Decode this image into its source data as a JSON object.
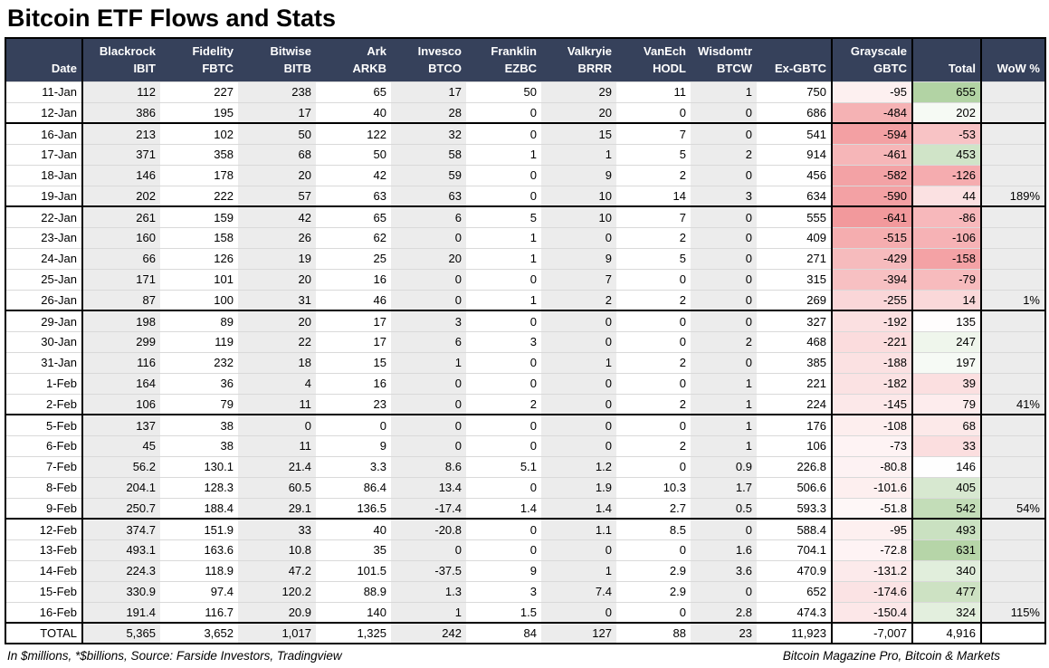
{
  "title": "Bitcoin ETF Flows and Stats",
  "footer": {
    "left": "In $millions, *$billions, Source: Farside Investors, Tradingview",
    "right": "Bitcoin Magazine Pro, Bitcoin & Markets"
  },
  "colors": {
    "header_bg": "#36415B",
    "column_stripe": "#ECECEC",
    "gbtc_red_max": "#F2999C",
    "total_green_max": "#B2D3A4",
    "total_red_max": "#F4A2A5"
  },
  "table": {
    "columns": [
      {
        "line1": "",
        "line2": "Date"
      },
      {
        "line1": "Blackrock",
        "line2": "IBIT"
      },
      {
        "line1": "Fidelity",
        "line2": "FBTC"
      },
      {
        "line1": "Bitwise",
        "line2": "BITB"
      },
      {
        "line1": "Ark",
        "line2": "ARKB"
      },
      {
        "line1": "Invesco",
        "line2": "BTCO"
      },
      {
        "line1": "Franklin",
        "line2": "EZBC"
      },
      {
        "line1": "Valkryie",
        "line2": "BRRR"
      },
      {
        "line1": "VanEch",
        "line2": "HODL"
      },
      {
        "line1": "Wisdomtr",
        "line2": "BTCW"
      },
      {
        "line1": "",
        "line2": "Ex-GBTC"
      },
      {
        "line1": "Grayscale",
        "line2": "GBTC"
      },
      {
        "line1": "",
        "line2": "Total"
      },
      {
        "line1": "",
        "line2": "WoW %"
      }
    ],
    "rows": [
      {
        "date": "11-Jan",
        "week_start": false,
        "values": [
          "112",
          "227",
          "238",
          "65",
          "17",
          "50",
          "29",
          "11",
          "1",
          "750",
          "-95",
          "655"
        ],
        "wow": ""
      },
      {
        "date": "12-Jan",
        "week_start": false,
        "values": [
          "386",
          "195",
          "17",
          "40",
          "28",
          "0",
          "20",
          "0",
          "0",
          "686",
          "-484",
          "202"
        ],
        "wow": ""
      },
      {
        "date": "16-Jan",
        "week_start": true,
        "values": [
          "213",
          "102",
          "50",
          "122",
          "32",
          "0",
          "15",
          "7",
          "0",
          "541",
          "-594",
          "-53"
        ],
        "wow": ""
      },
      {
        "date": "17-Jan",
        "week_start": false,
        "values": [
          "371",
          "358",
          "68",
          "50",
          "58",
          "1",
          "1",
          "5",
          "2",
          "914",
          "-461",
          "453"
        ],
        "wow": ""
      },
      {
        "date": "18-Jan",
        "week_start": false,
        "values": [
          "146",
          "178",
          "20",
          "42",
          "59",
          "0",
          "9",
          "2",
          "0",
          "456",
          "-582",
          "-126"
        ],
        "wow": ""
      },
      {
        "date": "19-Jan",
        "week_start": false,
        "values": [
          "202",
          "222",
          "57",
          "63",
          "63",
          "0",
          "10",
          "14",
          "3",
          "634",
          "-590",
          "44"
        ],
        "wow": "189%"
      },
      {
        "date": "22-Jan",
        "week_start": true,
        "values": [
          "261",
          "159",
          "42",
          "65",
          "6",
          "5",
          "10",
          "7",
          "0",
          "555",
          "-641",
          "-86"
        ],
        "wow": ""
      },
      {
        "date": "23-Jan",
        "week_start": false,
        "values": [
          "160",
          "158",
          "26",
          "62",
          "0",
          "1",
          "0",
          "2",
          "0",
          "409",
          "-515",
          "-106"
        ],
        "wow": ""
      },
      {
        "date": "24-Jan",
        "week_start": false,
        "values": [
          "66",
          "126",
          "19",
          "25",
          "20",
          "1",
          "9",
          "5",
          "0",
          "271",
          "-429",
          "-158"
        ],
        "wow": ""
      },
      {
        "date": "25-Jan",
        "week_start": false,
        "values": [
          "171",
          "101",
          "20",
          "16",
          "0",
          "0",
          "7",
          "0",
          "0",
          "315",
          "-394",
          "-79"
        ],
        "wow": ""
      },
      {
        "date": "26-Jan",
        "week_start": false,
        "values": [
          "87",
          "100",
          "31",
          "46",
          "0",
          "1",
          "2",
          "2",
          "0",
          "269",
          "-255",
          "14"
        ],
        "wow": "1%"
      },
      {
        "date": "29-Jan",
        "week_start": true,
        "values": [
          "198",
          "89",
          "20",
          "17",
          "3",
          "0",
          "0",
          "0",
          "0",
          "327",
          "-192",
          "135"
        ],
        "wow": ""
      },
      {
        "date": "30-Jan",
        "week_start": false,
        "values": [
          "299",
          "119",
          "22",
          "17",
          "6",
          "3",
          "0",
          "0",
          "2",
          "468",
          "-221",
          "247"
        ],
        "wow": ""
      },
      {
        "date": "31-Jan",
        "week_start": false,
        "values": [
          "116",
          "232",
          "18",
          "15",
          "1",
          "0",
          "1",
          "2",
          "0",
          "385",
          "-188",
          "197"
        ],
        "wow": ""
      },
      {
        "date": "1-Feb",
        "week_start": false,
        "values": [
          "164",
          "36",
          "4",
          "16",
          "0",
          "0",
          "0",
          "0",
          "1",
          "221",
          "-182",
          "39"
        ],
        "wow": ""
      },
      {
        "date": "2-Feb",
        "week_start": false,
        "values": [
          "106",
          "79",
          "11",
          "23",
          "0",
          "2",
          "0",
          "2",
          "1",
          "224",
          "-145",
          "79"
        ],
        "wow": "41%"
      },
      {
        "date": "5-Feb",
        "week_start": true,
        "values": [
          "137",
          "38",
          "0",
          "0",
          "0",
          "0",
          "0",
          "0",
          "1",
          "176",
          "-108",
          "68"
        ],
        "wow": ""
      },
      {
        "date": "6-Feb",
        "week_start": false,
        "values": [
          "45",
          "38",
          "11",
          "9",
          "0",
          "0",
          "0",
          "2",
          "1",
          "106",
          "-73",
          "33"
        ],
        "wow": ""
      },
      {
        "date": "7-Feb",
        "week_start": false,
        "values": [
          "56.2",
          "130.1",
          "21.4",
          "3.3",
          "8.6",
          "5.1",
          "1.2",
          "0",
          "0.9",
          "226.8",
          "-80.8",
          "146"
        ],
        "wow": ""
      },
      {
        "date": "8-Feb",
        "week_start": false,
        "values": [
          "204.1",
          "128.3",
          "60.5",
          "86.4",
          "13.4",
          "0",
          "1.9",
          "10.3",
          "1.7",
          "506.6",
          "-101.6",
          "405"
        ],
        "wow": ""
      },
      {
        "date": "9-Feb",
        "week_start": false,
        "values": [
          "250.7",
          "188.4",
          "29.1",
          "136.5",
          "-17.4",
          "1.4",
          "1.4",
          "2.7",
          "0.5",
          "593.3",
          "-51.8",
          "542"
        ],
        "wow": "54%"
      },
      {
        "date": "12-Feb",
        "week_start": true,
        "values": [
          "374.7",
          "151.9",
          "33",
          "40",
          "-20.8",
          "0",
          "1.1",
          "8.5",
          "0",
          "588.4",
          "-95",
          "493"
        ],
        "wow": ""
      },
      {
        "date": "13-Feb",
        "week_start": false,
        "values": [
          "493.1",
          "163.6",
          "10.8",
          "35",
          "0",
          "0",
          "0",
          "0",
          "1.6",
          "704.1",
          "-72.8",
          "631"
        ],
        "wow": ""
      },
      {
        "date": "14-Feb",
        "week_start": false,
        "values": [
          "224.3",
          "118.9",
          "47.2",
          "101.5",
          "-37.5",
          "9",
          "1",
          "2.9",
          "3.6",
          "470.9",
          "-131.2",
          "340"
        ],
        "wow": ""
      },
      {
        "date": "15-Feb",
        "week_start": false,
        "values": [
          "330.9",
          "97.4",
          "120.2",
          "88.9",
          "1.3",
          "3",
          "7.4",
          "2.9",
          "0",
          "652",
          "-174.6",
          "477"
        ],
        "wow": ""
      },
      {
        "date": "16-Feb",
        "week_start": false,
        "values": [
          "191.4",
          "116.7",
          "20.9",
          "140",
          "1",
          "1.5",
          "0",
          "0",
          "2.8",
          "474.3",
          "-150.4",
          "324"
        ],
        "wow": "115%"
      }
    ],
    "total_row": {
      "label": "TOTAL",
      "values": [
        "5,365",
        "3,652",
        "1,017",
        "1,325",
        "242",
        "84",
        "127",
        "88",
        "23",
        "11,923",
        "-7,007",
        "4,916"
      ],
      "wow": ""
    }
  }
}
